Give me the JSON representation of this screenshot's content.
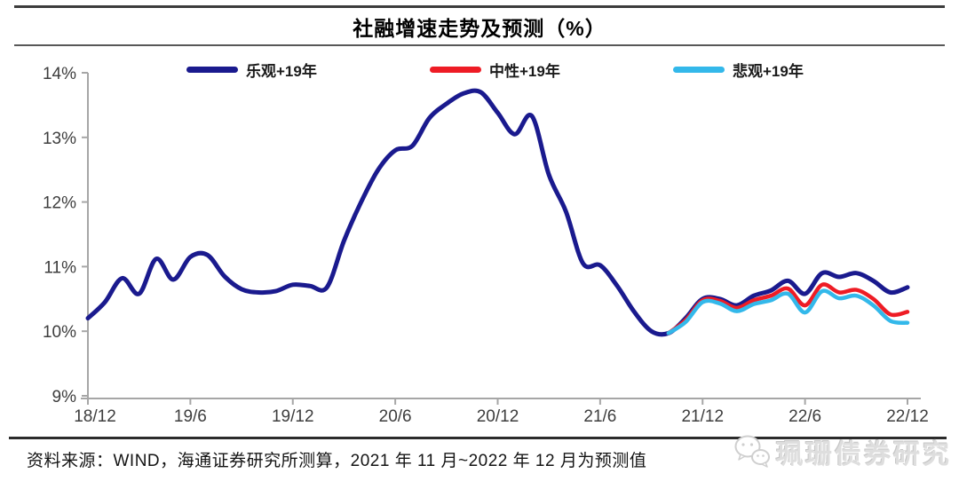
{
  "title": "社融增速走势及预测（%）",
  "legend": {
    "items": [
      {
        "label": "乐观+19年",
        "color": "#1a1a8e"
      },
      {
        "label": "中性+19年",
        "color": "#ee1c25"
      },
      {
        "label": "悲观+19年",
        "color": "#33b8ea"
      }
    ]
  },
  "source_note": "资料来源：WIND，海通证券研究所测算，2021 年 11 月~2022 年 12 月为预测值",
  "watermark": {
    "icon": "wechat-bubbles-icon",
    "text": "珮珊债券研究"
  },
  "chart_data": {
    "type": "line",
    "title": "社融增速走势及预测（%）",
    "x_unit": "month",
    "x_range": [
      "2018/12",
      "2022/12"
    ],
    "x_tick_labels": [
      "18/12",
      "19/6",
      "19/12",
      "20/6",
      "20/12",
      "21/6",
      "21/12",
      "22/6",
      "22/12"
    ],
    "x_tick_month_indexes": [
      0,
      6,
      12,
      18,
      24,
      30,
      36,
      42,
      48
    ],
    "y_tick_labels": [
      "14%",
      "13%",
      "12%",
      "11%",
      "10%",
      "9%"
    ],
    "ylim": [
      9,
      14
    ],
    "grid": false,
    "legend_position": "top",
    "forecast_note": "2021/11 - 2022/12 are forecast values",
    "series": [
      {
        "name": "乐观+19年",
        "color": "#1a1a8e",
        "start_index": 0,
        "values": [
          10.2,
          10.45,
          10.82,
          10.58,
          11.12,
          10.8,
          11.15,
          11.18,
          10.85,
          10.65,
          10.6,
          10.62,
          10.72,
          10.7,
          10.68,
          11.4,
          12.0,
          12.5,
          12.8,
          12.87,
          13.3,
          13.52,
          13.68,
          13.7,
          13.38,
          13.05,
          13.33,
          12.42,
          11.85,
          11.05,
          11.02,
          10.7,
          10.3,
          10.0,
          9.97,
          10.2,
          10.5,
          10.5,
          10.4,
          10.55,
          10.63,
          10.78,
          10.58,
          10.9,
          10.84,
          10.9,
          10.78,
          10.6,
          10.68
        ]
      },
      {
        "name": "中性+19年",
        "color": "#ee1c25",
        "start_index": 34,
        "values": [
          9.97,
          10.17,
          10.48,
          10.47,
          10.36,
          10.48,
          10.55,
          10.66,
          10.4,
          10.72,
          10.6,
          10.64,
          10.5,
          10.26,
          10.3
        ]
      },
      {
        "name": "悲观+19年",
        "color": "#33b8ea",
        "start_index": 34,
        "values": [
          9.97,
          10.14,
          10.45,
          10.43,
          10.31,
          10.42,
          10.48,
          10.58,
          10.29,
          10.62,
          10.51,
          10.55,
          10.4,
          10.16,
          10.13
        ]
      }
    ]
  }
}
